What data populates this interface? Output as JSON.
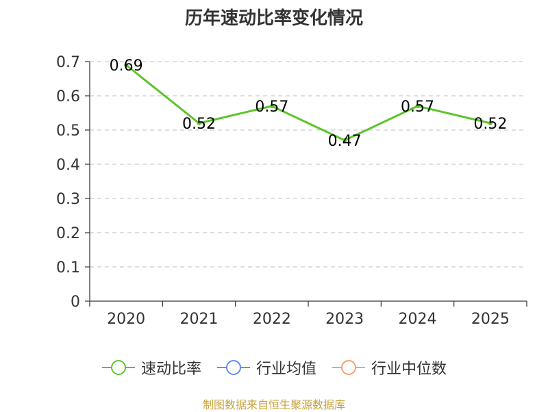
{
  "title": "历年速动比率变化情况",
  "source_note": "制图数据来自恒生聚源数据库",
  "legend": [
    {
      "label": "速动比率",
      "color": "#5cc42b"
    },
    {
      "label": "行业均值",
      "color": "#5b8ff9"
    },
    {
      "label": "行业中位数",
      "color": "#f5a16b"
    }
  ],
  "chart_data": {
    "type": "line",
    "title": "历年速动比率变化情况",
    "categories": [
      "2020",
      "2021",
      "2022",
      "2023",
      "2024",
      "2025"
    ],
    "series": [
      {
        "name": "速动比率",
        "color": "#5cc42b",
        "values": [
          0.69,
          0.52,
          0.57,
          0.47,
          0.57,
          0.52
        ]
      }
    ],
    "ylim": [
      0,
      0.7
    ],
    "yticks": [
      0,
      0.1,
      0.2,
      0.3,
      0.4,
      0.5,
      0.6,
      0.7
    ],
    "ytick_labels": [
      "0",
      "0.1",
      "0.2",
      "0.3",
      "0.4",
      "0.5",
      "0.6",
      "0.7"
    ],
    "data_labels": [
      "0.69",
      "0.52",
      "0.57",
      "0.47",
      "0.57",
      "0.52"
    ],
    "grid": true,
    "legend_position": "bottom"
  }
}
